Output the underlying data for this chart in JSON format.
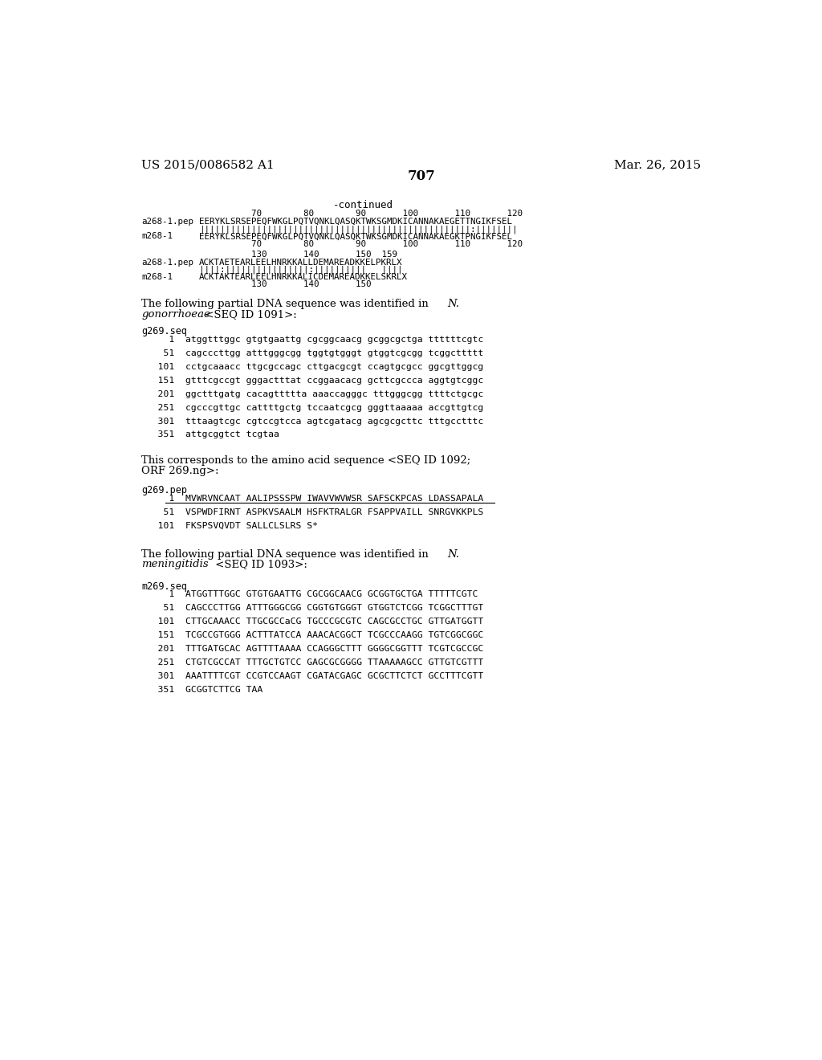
{
  "page_number": "707",
  "patent_number": "US 2015/0086582 A1",
  "patent_date": "Mar. 26, 2015",
  "background_color": "#ffffff",
  "text_color": "#000000",
  "seq1_lines": [
    "                    70        80        90       100       110       120",
    "a268-1.pep  EERYKLSRSEPEQFWKGLPQTVQNKLQASQKTWKSGMDKICANNAKAEGETTNGIKFSEL",
    "            ||||||||||||||||||||||||||||||||||||||||||||||||||||:||||||||",
    "m268-1      EERYKLSRSEPEQFWKGLPQTVQNKLQASQKTWKSGMDKICANNAKAEGKTPNGIKFSEL",
    "                    70        80        90       100       110       120"
  ],
  "seq2_lines": [
    "                    130       140       150  159",
    "a268-1.pep  ACKTAETEARLEELHNRKKALLDEMAREADKKELPKRLX",
    "            ||||:||||||||||||||||:||||||||||   ||||",
    "m268-1      ACKTAKTEARLEELHNRKKALICDEMAREADKKELSKRLX",
    "                    130       140       150"
  ],
  "g269seq_lines": [
    "     1  atggtttggc gtgtgaattg cgcggcaacg gcggcgctga ttttttcgtc",
    "    51  cagcccttgg atttgggcgg tggtgtgggt gtggtcgcgg tcggcttttt",
    "   101  cctgcaaacc ttgcgccagc cttgacgcgt ccagtgcgcc ggcgttggcg",
    "   151  gtttcgccgt gggactttat ccggaacacg gcttcgccca aggtgtcggc",
    "   201  ggctttgatg cacagttttta aaaccagggc tttgggcgg ttttctgcgc",
    "   251  cgcccgttgc cattttgctg tccaatcgcg gggttaaaaa accgttgtcg",
    "   301  tttaagtcgc cgtccgtcca agtcgatacg agcgcgcttc tttgcctttc",
    "   351  attgcggtct tcgtaa"
  ],
  "g269pep_lines": [
    "     1  MVWRVNCAAT AALIPSSSPW IWAVVWVWSR SAFSCKPCAS LDASSAPALA",
    "    51  VSPWDFIRNT ASPKVSAALM HSFKTRALGR FSAPPVAILL SNRGVKKPLS",
    "   101  FKSPSVQVDT SALLCLSLRS S*"
  ],
  "m269seq_lines": [
    "     1  ATGGTTTGGC GTGTGAATTG CGCGGCAACG GCGGTGCTGA TTTTTCGTC",
    "    51  CAGCCCTTGG ATTTGGGCGG CGGTGTGGGT GTGGTCTCGG TCGGCTTTGT",
    "   101  CTTGCAAACC TTGCGCCaCG TGCCCGCGTC CAGCGCCTGC GTTGATGGTT",
    "   151  TCGCCGTGGG ACTTTATCCA AAACACGGCT TCGCCCAAGG TGTCGGCGGC",
    "   201  TTTGATGCAC AGTTTTAAAA CCAGGGCTTT GGGGCGGTTT TCGTCGCCGC",
    "   251  CTGTCGCCAT TTTGCTGTCC GAGCGCGGGG TTAAAAAGCC GTTGTCGTTT",
    "   301  AAATTTTCGT CCGTCCAAGT CGATACGAGC GCGCTTCTCT GCCTTTCGTT",
    "   351  GCGGTCTTCG TAA"
  ]
}
